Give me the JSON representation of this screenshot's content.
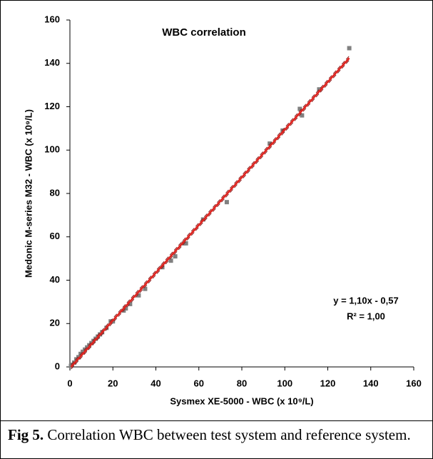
{
  "chart_data": {
    "type": "scatter",
    "title": "WBC correlation",
    "x_label": "Sysmex XE-5000 - WBC (x 10⁹/L)",
    "y_label": "Medonic M-series M32 - WBC (x 10⁹/L)",
    "x": [
      0.5,
      1,
      2,
      3,
      4,
      5,
      6,
      7,
      8,
      9,
      10,
      11,
      12,
      13,
      14,
      15,
      17,
      19,
      20,
      25,
      26,
      28,
      32,
      35,
      43,
      47,
      49,
      53,
      54,
      62,
      73,
      93,
      99,
      107,
      108,
      116,
      130
    ],
    "series": [
      {
        "color": "#808080",
        "values": [
          0.5,
          1,
          2,
          3.5,
          4.5,
          6,
          7,
          8,
          9,
          10,
          11,
          12,
          13,
          14,
          15,
          16,
          18,
          21,
          21,
          26,
          27,
          29,
          33,
          36,
          46,
          49,
          51,
          57,
          57,
          68,
          76,
          103,
          109,
          119,
          116,
          128,
          147
        ]
      }
    ],
    "trendline": {
      "slope": 1.1,
      "intercept": -0.57,
      "color": "#e0201b"
    },
    "annotations": [
      "y = 1,10x - 0,57",
      "R² = 1,00"
    ],
    "xlim": [
      0,
      160
    ],
    "ylim": [
      0,
      160
    ],
    "xticks": [
      0,
      20,
      40,
      60,
      80,
      100,
      120,
      140,
      160
    ],
    "yticks": [
      0,
      20,
      40,
      60,
      80,
      100,
      120,
      140,
      160
    ],
    "grid": false
  },
  "caption": {
    "label": "Fig 5.",
    "text": "Correlation WBC between test system and reference system."
  }
}
